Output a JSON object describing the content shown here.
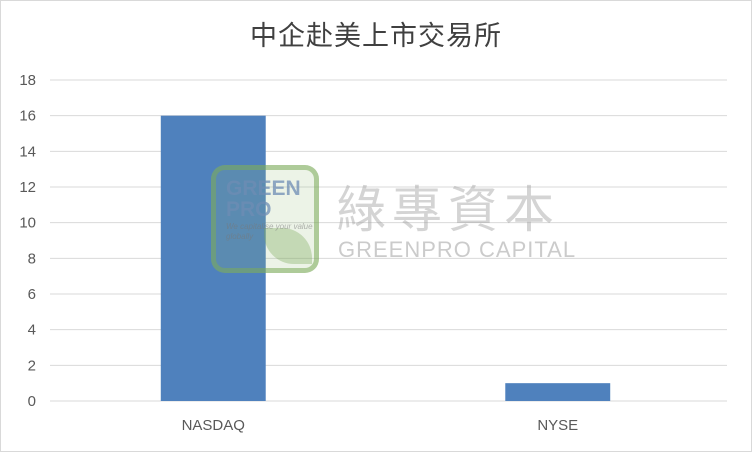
{
  "chart_data": {
    "type": "bar",
    "title": "中企赴美上市交易所",
    "categories": [
      "NASDAQ",
      "NYSE"
    ],
    "values": [
      16,
      1
    ],
    "xlabel": "",
    "ylabel": "",
    "ylim": [
      0,
      18
    ],
    "yticks": [
      0,
      2,
      4,
      6,
      8,
      10,
      12,
      14,
      16,
      18
    ],
    "grid": true,
    "legend": "none",
    "bar_color": "#4f81bd",
    "grid_color": "#d9d9d9"
  },
  "watermark": {
    "logo_text": "GREEN PRO",
    "logo_tagline": "We capitalise your value globally",
    "name_cn": "綠專資本",
    "name_en": "GREENPRO CAPITAL"
  }
}
